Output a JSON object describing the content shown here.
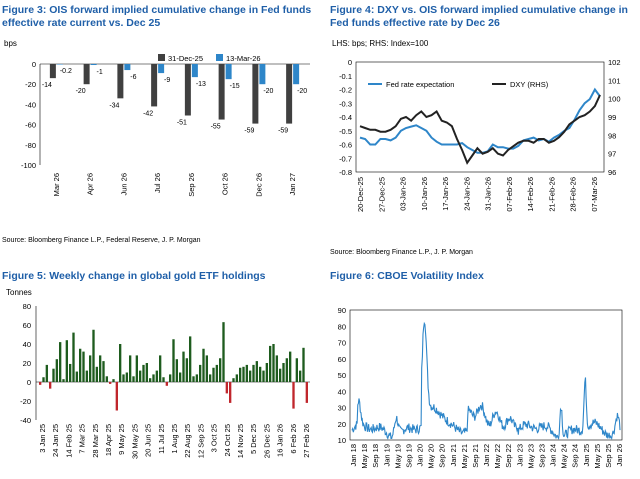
{
  "fig3": {
    "title": "Figure 3: OIS forward implied cumulative change in Fed funds effective rate current vs. Dec 25",
    "unit": "bps",
    "source": "Source: Bloomberg Finance L.P., Federal Reserve, J. P. Morgan",
    "colors": {
      "a": "#404040",
      "b": "#2e86c9"
    }
  },
  "fig4": {
    "title": "Figure 4: DXY vs. OIS forward implied cumulative change in Fed funds effective rate by Dec 26",
    "subtitle": "LHS: bps; RHS: Index=100",
    "source": "Source: Bloomberg Finance L.P., J. P. Morgan",
    "colors": {
      "a": "#2e86c9",
      "b": "#222222"
    }
  },
  "fig5": {
    "title": "Figure 5: Weekly change in global gold ETF holdings",
    "unit": "Tonnes",
    "colors": {
      "pos": "#1e5c1e",
      "neg": "#c0262c"
    }
  },
  "fig6": {
    "title": "Figure 6: CBOE Volatility Index",
    "colors": {
      "line": "#2e86c9"
    }
  },
  "chart_data": [
    {
      "id": "fig3",
      "type": "bar",
      "categories": [
        "Mar 26",
        "Apr 26",
        "Jun 26",
        "Jul 26",
        "Sep 26",
        "Oct 26",
        "Dec 26",
        "Jan 27"
      ],
      "series": [
        {
          "name": "31-Dec-25",
          "values": [
            -14,
            -20,
            -34,
            -42,
            -51,
            -55,
            -59,
            -59
          ]
        },
        {
          "name": "13-Mar-26",
          "values": [
            -0.2,
            -1,
            -6,
            -9,
            -13,
            -15,
            -20,
            -20
          ]
        }
      ],
      "data_labels": [
        [
          "-14",
          "-20",
          "-34",
          "-42",
          "-51",
          "-55",
          "-59",
          "-59"
        ],
        [
          "-0.2",
          "-1",
          "-6",
          "-9",
          "-13",
          "-15",
          "-20",
          "-20"
        ]
      ],
      "ylim": [
        -100,
        0
      ],
      "yticks": [
        "0",
        "-20",
        "-40",
        "-60",
        "-80",
        "-100"
      ],
      "legend": "top-right",
      "grid": false
    },
    {
      "id": "fig4",
      "type": "line",
      "x_ticks": [
        "20-Dec-25",
        "27-Dec-25",
        "03-Jan-26",
        "10-Jan-26",
        "17-Jan-26",
        "24-Jan-26",
        "31-Jan-26",
        "07-Feb-26",
        "14-Feb-26",
        "21-Feb-26",
        "28-Feb-26",
        "07-Mar-26"
      ],
      "ylim": [
        -0.8,
        0
      ],
      "yticks_left": [
        "0",
        "-0.1",
        "-0.2",
        "-0.3",
        "-0.4",
        "-0.5",
        "-0.6",
        "-0.7",
        "-0.8"
      ],
      "y2lim": [
        96,
        102
      ],
      "yticks_right": [
        "102",
        "101",
        "100",
        "99",
        "98",
        "97",
        "96"
      ],
      "series": [
        {
          "name": "Fed rate expectation",
          "axis": "left",
          "values": [
            -0.55,
            -0.56,
            -0.6,
            -0.6,
            -0.56,
            -0.56,
            -0.57,
            -0.55,
            -0.5,
            -0.48,
            -0.47,
            -0.46,
            -0.48,
            -0.5,
            -0.55,
            -0.58,
            -0.6,
            -0.6,
            -0.6,
            -0.6,
            -0.59,
            -0.62,
            -0.64,
            -0.66,
            -0.66,
            -0.65,
            -0.6,
            -0.62,
            -0.62,
            -0.63,
            -0.63,
            -0.61,
            -0.57,
            -0.56,
            -0.55,
            -0.57,
            -0.56,
            -0.58,
            -0.55,
            -0.53,
            -0.5,
            -0.48,
            -0.42,
            -0.35,
            -0.3,
            -0.27,
            -0.2,
            -0.25
          ]
        },
        {
          "name": "DXY (RHS)",
          "axis": "right",
          "values": [
            98.5,
            98.4,
            98.3,
            98.3,
            98.2,
            98.2,
            98.3,
            98.5,
            98.9,
            99.0,
            98.8,
            99.1,
            99.3,
            99.0,
            99.1,
            99.3,
            98.8,
            98.7,
            98.5,
            97.8,
            97.2,
            96.5,
            96.9,
            97.3,
            97.0,
            97.1,
            97.3,
            97.0,
            96.9,
            97.2,
            97.4,
            97.6,
            97.7,
            97.7,
            97.6,
            97.8,
            97.8,
            97.6,
            97.7,
            97.9,
            98.2,
            98.6,
            98.8,
            99.0,
            99.1,
            99.3,
            99.6,
            100.2
          ]
        }
      ],
      "legend": "top-left",
      "grid": false
    },
    {
      "id": "fig5",
      "type": "bar",
      "x_ticks": [
        "3 Jan 25",
        "24 Jan 25",
        "14 Feb 25",
        "7 Mar 25",
        "28 Mar 25",
        "18 Apr 25",
        "9 May 25",
        "30 May 25",
        "20 Jun 25",
        "11 Jul 25",
        "1 Aug 25",
        "22 Aug 25",
        "12 Sep 25",
        "3 Oct 25",
        "24 Oct 25",
        "14 Nov 25",
        "5 Dec 25",
        "26 Dec 25",
        "16 Jan 26",
        "6 Feb 26",
        "27 Feb 26"
      ],
      "values": [
        -3,
        5,
        18,
        -7,
        14,
        24,
        42,
        3,
        44,
        19,
        52,
        11,
        35,
        32,
        12,
        28,
        55,
        16,
        28,
        22,
        6,
        -2,
        3,
        -30,
        40,
        8,
        10,
        28,
        6,
        28,
        12,
        18,
        20,
        4,
        8,
        12,
        28,
        5,
        -4,
        8,
        45,
        24,
        10,
        32,
        25,
        48,
        6,
        8,
        18,
        35,
        28,
        8,
        15,
        18,
        25,
        63,
        -12,
        -22,
        4,
        8,
        15,
        16,
        18,
        12,
        18,
        22,
        16,
        12,
        20,
        38,
        40,
        28,
        14,
        20,
        25,
        32,
        -28,
        25,
        12,
        36,
        -22
      ],
      "ylim": [
        -40,
        80
      ],
      "yticks": [
        "80",
        "60",
        "40",
        "20",
        "0",
        "-20",
        "-40"
      ],
      "grid": false
    },
    {
      "id": "fig6",
      "type": "line",
      "x_ticks": [
        "Jan 18",
        "May 18",
        "Sep 18",
        "Jan 19",
        "May 19",
        "Sep 19",
        "Jan 20",
        "May 20",
        "Sep 20",
        "Jan 21",
        "May 21",
        "Sep 21",
        "Jan 22",
        "May 22",
        "Sep 22",
        "Jan 23",
        "May 23",
        "Sep 23",
        "Jan 24",
        "May 24",
        "Sep 24",
        "Jan 25",
        "May 25",
        "Sep 25",
        "Jan 26"
      ],
      "ylim": [
        10,
        90
      ],
      "yticks": [
        "90",
        "80",
        "70",
        "60",
        "50",
        "40",
        "30",
        "20",
        "10"
      ],
      "grid": false
    }
  ]
}
